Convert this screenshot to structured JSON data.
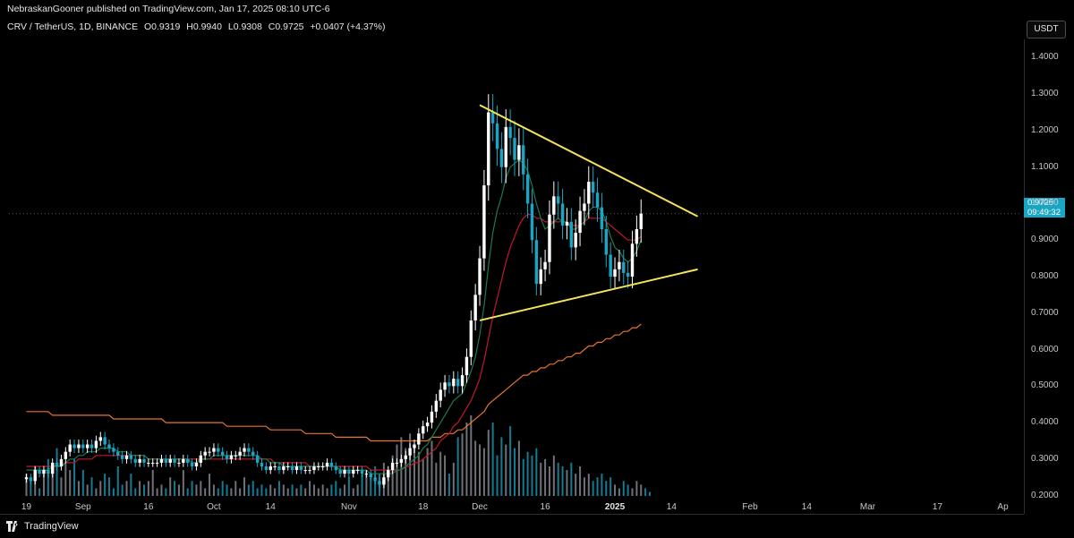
{
  "header": {
    "publisher_line": "NebraskanGooner published on TradingView.com, Jan 17, 2025 08:10 UTC-6"
  },
  "symbol": {
    "name": "CRV / TetherUS, 1D, BINANCE",
    "open_label": "O",
    "open": "0.9319",
    "high_label": "H",
    "high": "0.9940",
    "low_label": "L",
    "low": "0.9308",
    "close_label": "C",
    "close": "0.9725",
    "change": "+0.0407 (+4.37%)"
  },
  "currency_button": "USDT",
  "last_price": {
    "value": "0.9725",
    "countdown": "09:49:32"
  },
  "logo_text": "TradingView",
  "colors": {
    "up": "#26a69a",
    "candle_up": "#ffffff",
    "candle_down": "#19a6c4",
    "volume_up": "#9598a1",
    "volume_down": "#19a6c4",
    "ema_short": "#1b7a4f",
    "ema_mid": "#c0192b",
    "ema_long": "#e8742e",
    "trendline": "#f5e35a",
    "price_tag": "#19a6c4"
  },
  "chart_data": {
    "type": "candlestick",
    "title": "CRV / TetherUS, 1D, BINANCE",
    "price_axis_ticks": [
      "1.4000",
      "1.3000",
      "1.2000",
      "1.1000",
      "1.0000",
      "0.9000",
      "0.8000",
      "0.7000",
      "0.6000",
      "0.5000",
      "0.4000",
      "0.3000",
      "0.2000"
    ],
    "ylim": [
      0.15,
      1.45
    ],
    "time_axis_ticks": [
      {
        "label": "19",
        "day": 0,
        "bold": false
      },
      {
        "label": "Sep",
        "day": 13,
        "bold": false
      },
      {
        "label": "16",
        "day": 28,
        "bold": false
      },
      {
        "label": "Oct",
        "day": 43,
        "bold": false
      },
      {
        "label": "14",
        "day": 56,
        "bold": false
      },
      {
        "label": "Nov",
        "day": 74,
        "bold": false
      },
      {
        "label": "18",
        "day": 91,
        "bold": false
      },
      {
        "label": "Dec",
        "day": 104,
        "bold": false
      },
      {
        "label": "16",
        "day": 119,
        "bold": false
      },
      {
        "label": "2025",
        "day": 135,
        "bold": true
      },
      {
        "label": "14",
        "day": 148,
        "bold": false
      },
      {
        "label": "Feb",
        "day": 166,
        "bold": false
      },
      {
        "label": "14",
        "day": 179,
        "bold": false
      },
      {
        "label": "Mar",
        "day": 193,
        "bold": false
      },
      {
        "label": "17",
        "day": 209,
        "bold": false
      },
      {
        "label": "Ap",
        "day": 224,
        "bold": false
      }
    ],
    "candles_close": [
      0.25,
      0.24,
      0.27,
      0.26,
      0.27,
      0.26,
      0.29,
      0.28,
      0.3,
      0.32,
      0.34,
      0.33,
      0.34,
      0.33,
      0.34,
      0.33,
      0.35,
      0.36,
      0.34,
      0.33,
      0.32,
      0.31,
      0.3,
      0.31,
      0.3,
      0.29,
      0.3,
      0.29,
      0.29,
      0.29,
      0.29,
      0.3,
      0.29,
      0.3,
      0.29,
      0.29,
      0.3,
      0.29,
      0.28,
      0.29,
      0.31,
      0.32,
      0.32,
      0.33,
      0.32,
      0.31,
      0.3,
      0.31,
      0.31,
      0.32,
      0.33,
      0.32,
      0.31,
      0.29,
      0.28,
      0.27,
      0.28,
      0.28,
      0.27,
      0.28,
      0.28,
      0.27,
      0.28,
      0.27,
      0.27,
      0.27,
      0.28,
      0.28,
      0.28,
      0.29,
      0.28,
      0.27,
      0.26,
      0.27,
      0.26,
      0.27,
      0.27,
      0.26,
      0.26,
      0.25,
      0.24,
      0.23,
      0.25,
      0.27,
      0.29,
      0.29,
      0.3,
      0.31,
      0.33,
      0.34,
      0.37,
      0.39,
      0.4,
      0.43,
      0.46,
      0.49,
      0.51,
      0.5,
      0.52,
      0.5,
      0.53,
      0.58,
      0.68,
      0.75,
      0.85,
      1.05,
      1.25,
      1.22,
      1.15,
      1.1,
      1.21,
      1.18,
      1.12,
      1.16,
      1.08,
      1.0,
      0.9,
      0.78,
      0.82,
      0.84,
      0.97,
      1.02,
      1.0,
      0.94,
      0.95,
      0.88,
      0.92,
      0.98,
      1.0,
      1.06,
      1.03,
      0.99,
      0.93,
      0.86,
      0.8,
      0.82,
      0.84,
      0.81,
      0.8,
      0.89,
      0.93,
      0.9725
    ],
    "volume": [
      0.26,
      0.24,
      0.28,
      0.22,
      0.26,
      0.3,
      0.27,
      0.33,
      0.25,
      0.29,
      0.27,
      0.3,
      0.24,
      0.27,
      0.23,
      0.25,
      0.22,
      0.24,
      0.26,
      0.25,
      0.22,
      0.28,
      0.23,
      0.24,
      0.26,
      0.22,
      0.24,
      0.23,
      0.24,
      0.27,
      0.22,
      0.23,
      0.22,
      0.25,
      0.24,
      0.23,
      0.27,
      0.22,
      0.24,
      0.23,
      0.24,
      0.22,
      0.26,
      0.23,
      0.22,
      0.24,
      0.23,
      0.22,
      0.24,
      0.22,
      0.25,
      0.23,
      0.24,
      0.22,
      0.23,
      0.22,
      0.23,
      0.22,
      0.24,
      0.23,
      0.22,
      0.23,
      0.22,
      0.23,
      0.22,
      0.24,
      0.23,
      0.22,
      0.23,
      0.22,
      0.23,
      0.24,
      0.22,
      0.23,
      0.25,
      0.22,
      0.23,
      0.26,
      0.27,
      0.25,
      0.28,
      0.26,
      0.29,
      0.26,
      0.31,
      0.34,
      0.36,
      0.33,
      0.37,
      0.34,
      0.32,
      0.3,
      0.33,
      0.35,
      0.29,
      0.32,
      0.31,
      0.26,
      0.29,
      0.36,
      0.37,
      0.4,
      0.42,
      0.35,
      0.34,
      0.33,
      0.38,
      0.4,
      0.31,
      0.36,
      0.34,
      0.39,
      0.33,
      0.35,
      0.3,
      0.32,
      0.31,
      0.33,
      0.29,
      0.3,
      0.28,
      0.31,
      0.29,
      0.28,
      0.27,
      0.29,
      0.26,
      0.28,
      0.25,
      0.26,
      0.24,
      0.25,
      0.26,
      0.24,
      0.25,
      0.23,
      0.22,
      0.24,
      0.23,
      0.22,
      0.24,
      0.23,
      0.22,
      0.21
    ],
    "ema_short": [
      0.27,
      0.27,
      0.27,
      0.27,
      0.27,
      0.27,
      0.28,
      0.28,
      0.28,
      0.29,
      0.3,
      0.3,
      0.31,
      0.31,
      0.32,
      0.32,
      0.32,
      0.33,
      0.33,
      0.33,
      0.33,
      0.32,
      0.32,
      0.32,
      0.31,
      0.31,
      0.31,
      0.31,
      0.3,
      0.3,
      0.3,
      0.3,
      0.3,
      0.3,
      0.3,
      0.3,
      0.3,
      0.3,
      0.29,
      0.29,
      0.3,
      0.3,
      0.3,
      0.31,
      0.31,
      0.31,
      0.31,
      0.31,
      0.31,
      0.31,
      0.31,
      0.31,
      0.31,
      0.31,
      0.3,
      0.3,
      0.29,
      0.29,
      0.29,
      0.28,
      0.28,
      0.28,
      0.28,
      0.28,
      0.28,
      0.28,
      0.28,
      0.28,
      0.28,
      0.28,
      0.28,
      0.28,
      0.27,
      0.27,
      0.27,
      0.27,
      0.27,
      0.27,
      0.27,
      0.26,
      0.26,
      0.26,
      0.26,
      0.26,
      0.26,
      0.27,
      0.27,
      0.28,
      0.29,
      0.3,
      0.31,
      0.33,
      0.34,
      0.36,
      0.38,
      0.4,
      0.42,
      0.44,
      0.46,
      0.47,
      0.48,
      0.51,
      0.54,
      0.58,
      0.64,
      0.72,
      0.83,
      0.92,
      0.98,
      1.02,
      1.07,
      1.1,
      1.11,
      1.12,
      1.11,
      1.09,
      1.05,
      1.0,
      0.96,
      0.93,
      0.94,
      0.95,
      0.96,
      0.95,
      0.95,
      0.93,
      0.93,
      0.94,
      0.95,
      0.98,
      0.99,
      0.99,
      0.98,
      0.95,
      0.91,
      0.88,
      0.87,
      0.85,
      0.84,
      0.85,
      0.87,
      0.9
    ],
    "ema_mid": [
      0.28,
      0.28,
      0.28,
      0.28,
      0.28,
      0.28,
      0.28,
      0.28,
      0.28,
      0.29,
      0.29,
      0.29,
      0.3,
      0.3,
      0.3,
      0.3,
      0.31,
      0.31,
      0.31,
      0.31,
      0.31,
      0.31,
      0.31,
      0.31,
      0.31,
      0.31,
      0.31,
      0.31,
      0.3,
      0.3,
      0.3,
      0.3,
      0.3,
      0.3,
      0.3,
      0.3,
      0.3,
      0.3,
      0.3,
      0.3,
      0.3,
      0.3,
      0.3,
      0.3,
      0.3,
      0.3,
      0.3,
      0.3,
      0.3,
      0.3,
      0.3,
      0.3,
      0.3,
      0.3,
      0.3,
      0.3,
      0.3,
      0.29,
      0.29,
      0.29,
      0.29,
      0.29,
      0.29,
      0.29,
      0.29,
      0.28,
      0.28,
      0.28,
      0.28,
      0.28,
      0.28,
      0.28,
      0.28,
      0.28,
      0.28,
      0.28,
      0.28,
      0.28,
      0.28,
      0.27,
      0.27,
      0.27,
      0.27,
      0.27,
      0.27,
      0.27,
      0.27,
      0.28,
      0.28,
      0.29,
      0.29,
      0.3,
      0.31,
      0.32,
      0.33,
      0.35,
      0.36,
      0.37,
      0.39,
      0.4,
      0.42,
      0.44,
      0.46,
      0.49,
      0.52,
      0.57,
      0.63,
      0.69,
      0.74,
      0.79,
      0.84,
      0.88,
      0.91,
      0.94,
      0.96,
      0.97,
      0.97,
      0.96,
      0.96,
      0.95,
      0.95,
      0.95,
      0.95,
      0.95,
      0.95,
      0.94,
      0.94,
      0.94,
      0.95,
      0.96,
      0.96,
      0.96,
      0.96,
      0.95,
      0.94,
      0.93,
      0.92,
      0.91,
      0.9,
      0.9,
      0.9,
      0.91
    ],
    "ema_long": [
      0.43,
      0.43,
      0.43,
      0.43,
      0.43,
      0.43,
      0.42,
      0.42,
      0.42,
      0.42,
      0.42,
      0.42,
      0.42,
      0.42,
      0.42,
      0.42,
      0.42,
      0.42,
      0.42,
      0.42,
      0.41,
      0.41,
      0.41,
      0.41,
      0.41,
      0.41,
      0.41,
      0.41,
      0.41,
      0.41,
      0.41,
      0.41,
      0.4,
      0.4,
      0.4,
      0.4,
      0.4,
      0.4,
      0.4,
      0.4,
      0.4,
      0.4,
      0.4,
      0.4,
      0.4,
      0.4,
      0.39,
      0.39,
      0.39,
      0.39,
      0.39,
      0.39,
      0.39,
      0.39,
      0.39,
      0.39,
      0.38,
      0.38,
      0.38,
      0.38,
      0.38,
      0.38,
      0.38,
      0.38,
      0.37,
      0.37,
      0.37,
      0.37,
      0.37,
      0.37,
      0.37,
      0.36,
      0.36,
      0.36,
      0.36,
      0.36,
      0.36,
      0.36,
      0.36,
      0.35,
      0.35,
      0.35,
      0.35,
      0.35,
      0.35,
      0.35,
      0.35,
      0.35,
      0.35,
      0.35,
      0.35,
      0.35,
      0.35,
      0.36,
      0.36,
      0.36,
      0.37,
      0.37,
      0.37,
      0.38,
      0.38,
      0.39,
      0.4,
      0.41,
      0.42,
      0.43,
      0.45,
      0.46,
      0.47,
      0.48,
      0.49,
      0.5,
      0.51,
      0.52,
      0.53,
      0.53,
      0.54,
      0.54,
      0.55,
      0.55,
      0.56,
      0.56,
      0.57,
      0.57,
      0.58,
      0.58,
      0.59,
      0.59,
      0.6,
      0.61,
      0.61,
      0.62,
      0.62,
      0.63,
      0.63,
      0.64,
      0.64,
      0.65,
      0.65,
      0.66,
      0.66,
      0.67
    ],
    "trendlines": [
      {
        "name": "upper",
        "from": {
          "day": 104,
          "price": 1.27
        },
        "to": {
          "day": 154,
          "price": 0.965
        }
      },
      {
        "name": "lower",
        "from": {
          "day": 104,
          "price": 0.68
        },
        "to": {
          "day": 154,
          "price": 0.82
        }
      }
    ],
    "last_price_line": 0.9725
  }
}
